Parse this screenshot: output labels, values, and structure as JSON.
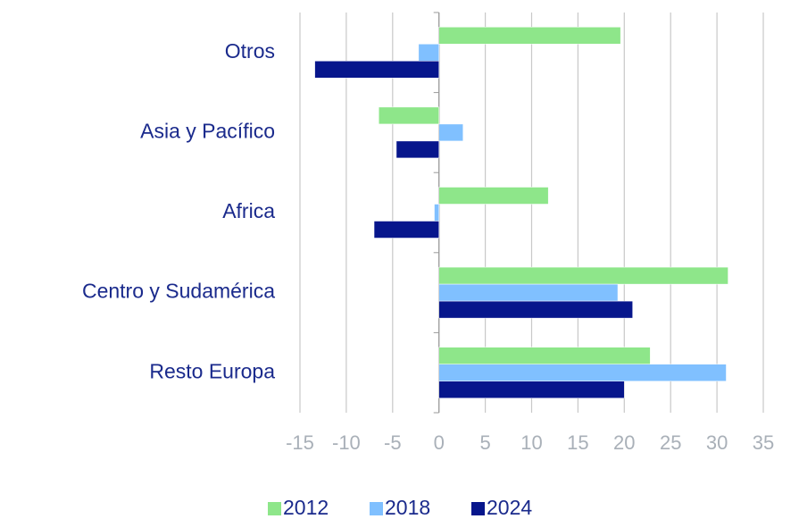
{
  "chart_data": {
    "type": "hbar",
    "categories": [
      "Otros",
      "Asia y Pacífico",
      "Africa",
      "Centro y Sudamérica",
      "Resto Europa"
    ],
    "series": [
      {
        "name": "2012",
        "color": "#8ee68a",
        "values": [
          19.6,
          -6.5,
          11.8,
          31.2,
          22.8
        ]
      },
      {
        "name": "2018",
        "color": "#80c0ff",
        "values": [
          -2.2,
          2.6,
          -0.5,
          19.3,
          31.0
        ]
      },
      {
        "name": "2024",
        "color": "#07168c",
        "values": [
          -13.4,
          -4.6,
          -7.0,
          20.9,
          20.0
        ]
      }
    ],
    "xlim": [
      -15,
      35
    ],
    "xticks": [
      -15,
      -10,
      -5,
      0,
      5,
      10,
      15,
      20,
      25,
      30,
      35
    ],
    "grid": true,
    "legend": "bottom"
  }
}
